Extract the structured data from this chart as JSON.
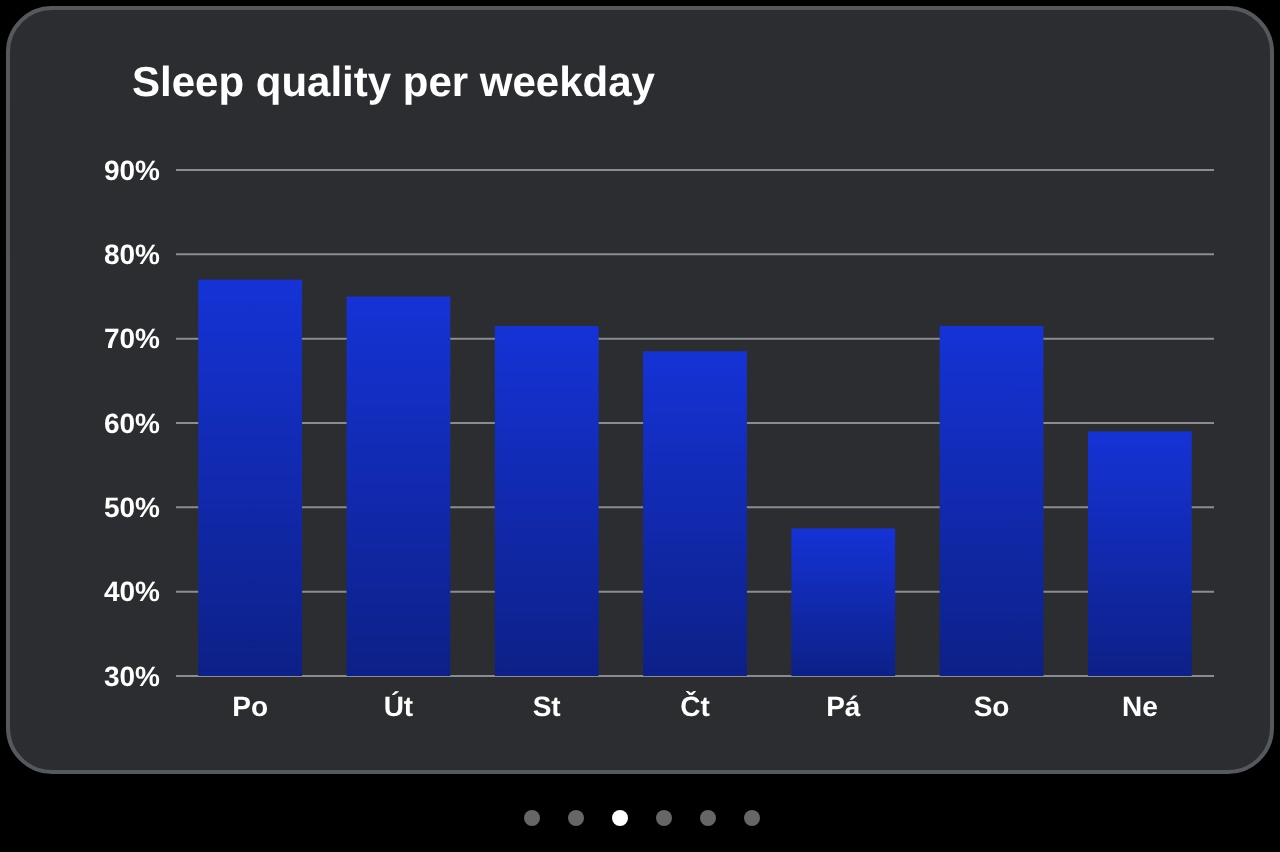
{
  "chart_data": {
    "type": "bar",
    "title": "Sleep quality per weekday",
    "categories": [
      "Po",
      "Út",
      "St",
      "Čt",
      "Pá",
      "So",
      "Ne"
    ],
    "values": [
      77,
      75,
      71.5,
      68.5,
      47.5,
      71.5,
      59
    ],
    "color": "#1533d6",
    "ylim": [
      30,
      90
    ],
    "yticks": [
      {
        "value": 30,
        "label": "30%"
      },
      {
        "value": 40,
        "label": "40%"
      },
      {
        "value": 50,
        "label": "50%"
      },
      {
        "value": 60,
        "label": "60%"
      },
      {
        "value": 70,
        "label": "70%"
      },
      {
        "value": 80,
        "label": "80%"
      },
      {
        "value": 90,
        "label": "90%"
      }
    ],
    "grid": "y"
  }
}
